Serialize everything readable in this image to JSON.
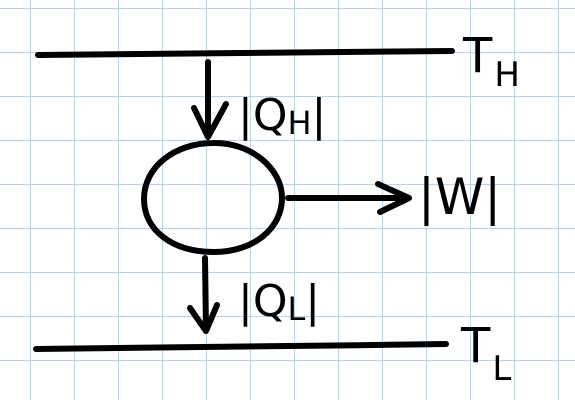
{
  "diagram": {
    "hot_reservoir_label": "T",
    "hot_reservoir_subscript": "H",
    "cold_reservoir_label": "T",
    "cold_reservoir_subscript": "L",
    "heat_in_label": "|Q",
    "heat_in_subscript": "H",
    "heat_in_close": "|",
    "heat_out_label": "|Q",
    "heat_out_subscript": "L",
    "heat_out_close": "|",
    "work_label": "|W|"
  },
  "colors": {
    "ink": "#000000",
    "grid": "#b9d3ea",
    "paper": "#ffffff"
  }
}
